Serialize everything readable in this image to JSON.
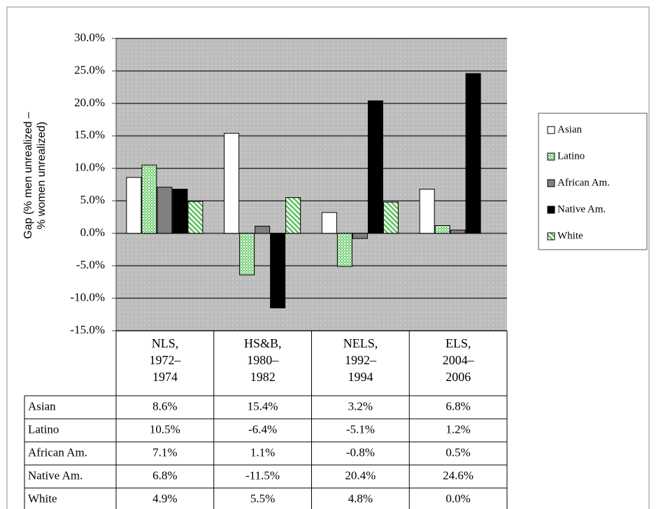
{
  "chart_data": {
    "type": "bar",
    "ylabel": "Gap (% men unrealized –\n% women unrealized)",
    "categories": [
      "NLS,\n1972–\n1974",
      "HS&B,\n1980–\n1982",
      "NELS,\n1992–\n1994",
      "ELS,\n2004–\n2006"
    ],
    "series": [
      {
        "name": "Asian",
        "color": "#ffffff",
        "pattern": "solid",
        "values": [
          8.6,
          15.4,
          3.2,
          6.8
        ],
        "value_labels": [
          "8.6%",
          "15.4%",
          "3.2%",
          "6.8%"
        ]
      },
      {
        "name": "Latino",
        "color": "#6fcf6f",
        "pattern": "checker",
        "values": [
          10.5,
          -6.4,
          -5.1,
          1.2
        ],
        "value_labels": [
          "10.5%",
          "-6.4%",
          "-5.1%",
          "1.2%"
        ]
      },
      {
        "name": "African Am.",
        "color": "#808080",
        "pattern": "solid",
        "values": [
          7.1,
          1.1,
          -0.8,
          0.5
        ],
        "value_labels": [
          "7.1%",
          "1.1%",
          "-0.8%",
          "0.5%"
        ]
      },
      {
        "name": "Native Am.",
        "color": "#000000",
        "pattern": "solid",
        "values": [
          6.8,
          -11.5,
          20.4,
          24.6
        ],
        "value_labels": [
          "6.8%",
          "-11.5%",
          "20.4%",
          "24.6%"
        ]
      },
      {
        "name": "White",
        "color": "#5cbf5c",
        "pattern": "hatch",
        "values": [
          4.9,
          5.5,
          4.8,
          0.0
        ],
        "value_labels": [
          "4.9%",
          "5.5%",
          "4.8%",
          "0.0%"
        ]
      }
    ],
    "ylim": [
      -15,
      30
    ],
    "yticks": [
      {
        "value": -15,
        "label": "-15.0%"
      },
      {
        "value": -10,
        "label": "-10.0%"
      },
      {
        "value": -5,
        "label": "-5.0%"
      },
      {
        "value": 0,
        "label": "0.0%"
      },
      {
        "value": 5,
        "label": "5.0%"
      },
      {
        "value": 10,
        "label": "10.0%"
      },
      {
        "value": 15,
        "label": "15.0%"
      },
      {
        "value": 20,
        "label": "20.0%"
      },
      {
        "value": 25,
        "label": "25.0%"
      },
      {
        "value": 30,
        "label": "30.0%"
      }
    ],
    "grid": true,
    "legend": "right",
    "data_table": true
  }
}
